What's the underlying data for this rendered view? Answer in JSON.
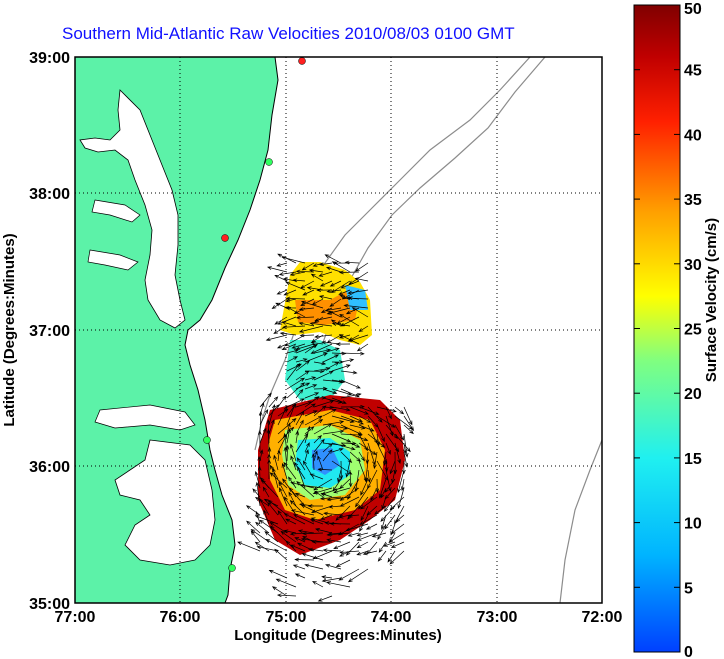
{
  "title": "Southern Mid-Atlantic Raw Velocities 2010/08/03 0100 GMT",
  "xlabel": "Longitude (Degrees:Minutes)",
  "ylabel": "Latitude (Degrees:Minutes)",
  "x_ticks": [
    "77:00",
    "76:00",
    "75:00",
    "74:00",
    "73:00",
    "72:00"
  ],
  "y_ticks": [
    "39:00",
    "38:00",
    "37:00",
    "36:00",
    "35:00"
  ],
  "colorbar": {
    "label": "Surface Velocity (cm/s)",
    "ticks": [
      "50",
      "45",
      "40",
      "35",
      "30",
      "25",
      "20",
      "15",
      "10",
      "5",
      "0"
    ],
    "range": [
      0,
      50
    ],
    "colors": [
      "#0040ff",
      "#00c0ff",
      "#40ffd0",
      "#a0ff60",
      "#ffff00",
      "#ffb000",
      "#ff5000",
      "#e00000",
      "#800000"
    ]
  },
  "map": {
    "lon_range": [
      -77,
      -72
    ],
    "lat_range": [
      35,
      39
    ],
    "land_color": "#5cf2a8",
    "water_color": "#ffffff"
  }
}
